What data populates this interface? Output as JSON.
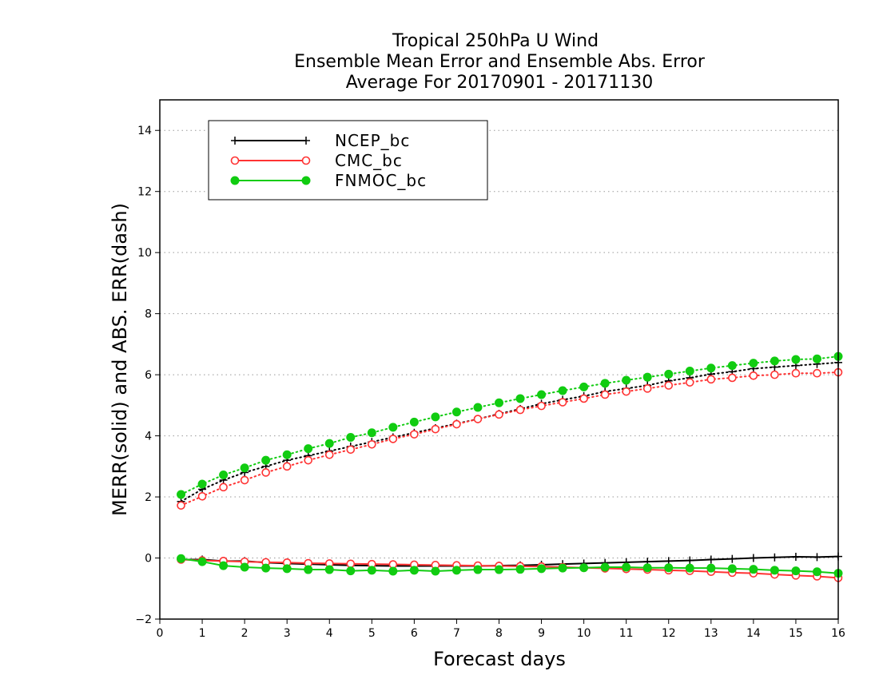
{
  "title_lines": [
    "Tropical 250hPa U Wind",
    "Ensemble Mean Error and Ensemble Abs. Error",
    "Average For 20170901 - 20171130"
  ],
  "chart_data": {
    "type": "line",
    "title": "Tropical 250hPa U Wind / Ensemble Mean Error and Ensemble Abs. Error / Average For 20170901 - 20171130",
    "xlabel": "Forecast days",
    "ylabel": "MERR(solid) and ABS. ERR(dash)",
    "xlim": [
      0,
      16
    ],
    "ylim": [
      -2,
      15
    ],
    "xticks": [
      0,
      1,
      2,
      3,
      4,
      5,
      6,
      7,
      8,
      9,
      10,
      11,
      12,
      13,
      14,
      15,
      16
    ],
    "yticks": [
      -2,
      0,
      2,
      4,
      6,
      8,
      10,
      12,
      14
    ],
    "grid": "horizontal dotted",
    "legend_position": "top-left",
    "x": [
      0.5,
      1,
      1.5,
      2,
      2.5,
      3,
      3.5,
      4,
      4.5,
      5,
      5.5,
      6,
      6.5,
      7,
      7.5,
      8,
      8.5,
      9,
      9.5,
      10,
      10.5,
      11,
      11.5,
      12,
      12.5,
      13,
      13.5,
      14,
      14.5,
      15,
      15.5,
      16
    ],
    "series": [
      {
        "name": "NCEP_bc",
        "color": "#000000",
        "marker": "plus",
        "mean_error": [
          -0.05,
          -0.05,
          -0.1,
          -0.1,
          -0.15,
          -0.18,
          -0.2,
          -0.22,
          -0.24,
          -0.25,
          -0.26,
          -0.26,
          -0.26,
          -0.26,
          -0.26,
          -0.25,
          -0.24,
          -0.22,
          -0.2,
          -0.18,
          -0.16,
          -0.14,
          -0.12,
          -0.1,
          -0.08,
          -0.05,
          -0.03,
          0.0,
          0.02,
          0.04,
          0.03,
          0.05
        ],
        "abs_error": [
          1.85,
          2.25,
          2.55,
          2.8,
          3.0,
          3.2,
          3.35,
          3.5,
          3.65,
          3.8,
          3.95,
          4.1,
          4.25,
          4.4,
          4.55,
          4.72,
          4.88,
          5.05,
          5.18,
          5.3,
          5.45,
          5.55,
          5.65,
          5.8,
          5.9,
          6.02,
          6.1,
          6.2,
          6.25,
          6.3,
          6.35,
          6.4
        ]
      },
      {
        "name": "CMC_bc",
        "color": "#ff3333",
        "marker": "open-circle",
        "mean_error": [
          -0.05,
          -0.08,
          -0.1,
          -0.12,
          -0.14,
          -0.15,
          -0.17,
          -0.18,
          -0.19,
          -0.2,
          -0.21,
          -0.22,
          -0.23,
          -0.24,
          -0.25,
          -0.26,
          -0.27,
          -0.28,
          -0.3,
          -0.32,
          -0.34,
          -0.36,
          -0.38,
          -0.4,
          -0.42,
          -0.45,
          -0.48,
          -0.5,
          -0.54,
          -0.57,
          -0.6,
          -0.65
        ],
        "abs_error": [
          1.72,
          2.02,
          2.32,
          2.55,
          2.8,
          3.0,
          3.2,
          3.38,
          3.55,
          3.72,
          3.9,
          4.05,
          4.22,
          4.38,
          4.55,
          4.7,
          4.85,
          4.98,
          5.1,
          5.22,
          5.35,
          5.45,
          5.55,
          5.65,
          5.75,
          5.85,
          5.9,
          5.97,
          6.0,
          6.05,
          6.05,
          6.08
        ]
      },
      {
        "name": "FNMOC_bc",
        "color": "#11cc11",
        "marker": "filled-circle",
        "mean_error": [
          -0.02,
          -0.12,
          -0.25,
          -0.3,
          -0.33,
          -0.35,
          -0.38,
          -0.38,
          -0.42,
          -0.4,
          -0.43,
          -0.4,
          -0.43,
          -0.4,
          -0.38,
          -0.38,
          -0.37,
          -0.35,
          -0.33,
          -0.32,
          -0.3,
          -0.3,
          -0.32,
          -0.32,
          -0.33,
          -0.33,
          -0.35,
          -0.37,
          -0.4,
          -0.42,
          -0.45,
          -0.5
        ],
        "abs_error": [
          2.08,
          2.42,
          2.72,
          2.95,
          3.2,
          3.38,
          3.58,
          3.75,
          3.95,
          4.1,
          4.28,
          4.45,
          4.62,
          4.78,
          4.93,
          5.08,
          5.22,
          5.35,
          5.48,
          5.6,
          5.72,
          5.82,
          5.92,
          6.02,
          6.12,
          6.22,
          6.3,
          6.38,
          6.45,
          6.5,
          6.52,
          6.6
        ]
      }
    ]
  }
}
